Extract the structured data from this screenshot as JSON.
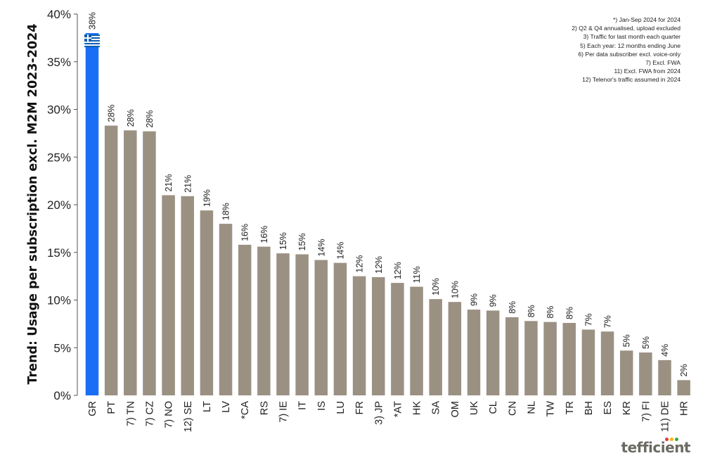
{
  "chart_data": {
    "type": "bar",
    "title": "",
    "ylabel": "Trend: Usage per subscription excl. M2M 2023-2024",
    "ylim": [
      0,
      40
    ],
    "yticks": [
      0,
      5,
      10,
      15,
      20,
      25,
      30,
      35,
      40
    ],
    "ytick_labels": [
      "0%",
      "5%",
      "10%",
      "15%",
      "20%",
      "25%",
      "30%",
      "35%",
      "40%"
    ],
    "grid": false,
    "categories": [
      "GR",
      "PT",
      "7) TN",
      "7) CZ",
      "7) NO",
      "12) SE",
      "LT",
      "LV",
      "*CA",
      "RS",
      "7) IE",
      "IT",
      "IS",
      "LU",
      "FR",
      "3) JP",
      "*AT",
      "HK",
      "SA",
      "OM",
      "UK",
      "CL",
      "CN",
      "NL",
      "TW",
      "TR",
      "BH",
      "ES",
      "KR",
      "7) FI",
      "11) DE",
      "HR"
    ],
    "values": [
      38.0,
      28.3,
      27.8,
      27.7,
      21.0,
      20.9,
      19.4,
      18.0,
      15.8,
      15.6,
      14.9,
      14.8,
      14.2,
      13.9,
      12.5,
      12.4,
      11.8,
      11.4,
      10.1,
      9.8,
      9.0,
      8.9,
      8.2,
      7.8,
      7.7,
      7.6,
      6.9,
      6.7,
      4.7,
      4.5,
      3.7,
      1.6
    ],
    "labels": [
      "38%",
      "28%",
      "28%",
      "28%",
      "21%",
      "21%",
      "19%",
      "18%",
      "16%",
      "16%",
      "15%",
      "15%",
      "14%",
      "14%",
      "12%",
      "12%",
      "12%",
      "11%",
      "10%",
      "10%",
      "9%",
      "9%",
      "8%",
      "8%",
      "8%",
      "8%",
      "7%",
      "7%",
      "5%",
      "5%",
      "4%",
      "2%"
    ],
    "highlight_category": "GR",
    "colors": {
      "default_bar": "#9b9183",
      "highlight_bar": "#1a6ef5",
      "flag_blue": "#0d5eaf",
      "flag_white": "#ffffff"
    },
    "notes": [
      "*) Jan-Sep 2024 for 2024",
      "2) Q2 & Q4 annualised, upload excluded",
      "3) Traffic for last month each quarter",
      "5) Each year: 12 months ending June",
      "6) Per data subscriber excl. voice-only",
      "7) Excl. FWA",
      "11) Excl. FWA from 2024",
      "12) Telenor's traffic assumed in 2024"
    ]
  },
  "brand": {
    "name": "tefficient",
    "dot_colors": [
      "#e53935",
      "#f4b400",
      "#43a047"
    ]
  }
}
